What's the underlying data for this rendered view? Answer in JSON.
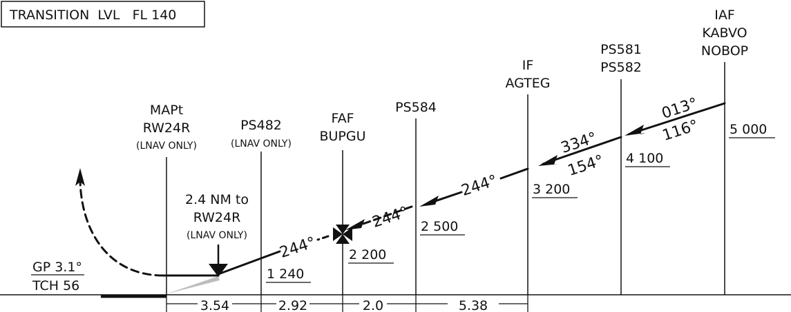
{
  "transition_level": "TRANSITION  LVL   FL 140",
  "colors": {
    "ink": "#111111",
    "glide_shade": "#bdbdbd",
    "background": "#ffffff"
  },
  "fixes": {
    "iaf": {
      "line1": "IAF",
      "line2": "KABVO",
      "line3": "NOBOP",
      "altitude": "5 000"
    },
    "ps581": {
      "line1": "PS581",
      "line2": "PS582",
      "altitude": "4 100"
    },
    "if": {
      "line1": "IF",
      "line2": "AGTEG",
      "altitude": "3 200"
    },
    "ps584": {
      "line1": "PS584",
      "altitude": "2 500"
    },
    "faf": {
      "line1": "FAF",
      "line2": "BUPGU",
      "altitude": "2 200"
    },
    "ps482": {
      "line1": "PS482",
      "note": "(LNAV ONLY)",
      "altitude": "1 240"
    },
    "mapt": {
      "line1": "MAPt",
      "line2": "RW24R",
      "note": "(LNAV ONLY)"
    }
  },
  "distance_note": {
    "line1": "2.4 NM to",
    "line2": "RW24R",
    "note": "(LNAV ONLY)"
  },
  "glide_path": {
    "gp": "GP 3.1°",
    "tch": "TCH 56"
  },
  "courses": {
    "c013": "013°",
    "c116": "116°",
    "c334": "334°",
    "c154": "154°",
    "c244_if": "244°",
    "c244_ps584": "244°",
    "c244_final": "244°"
  },
  "distances": {
    "mapt_ps482": "3.54",
    "ps482_faf": "2.92",
    "faf_ps584": "2.0",
    "ps584_if": "5.38"
  }
}
